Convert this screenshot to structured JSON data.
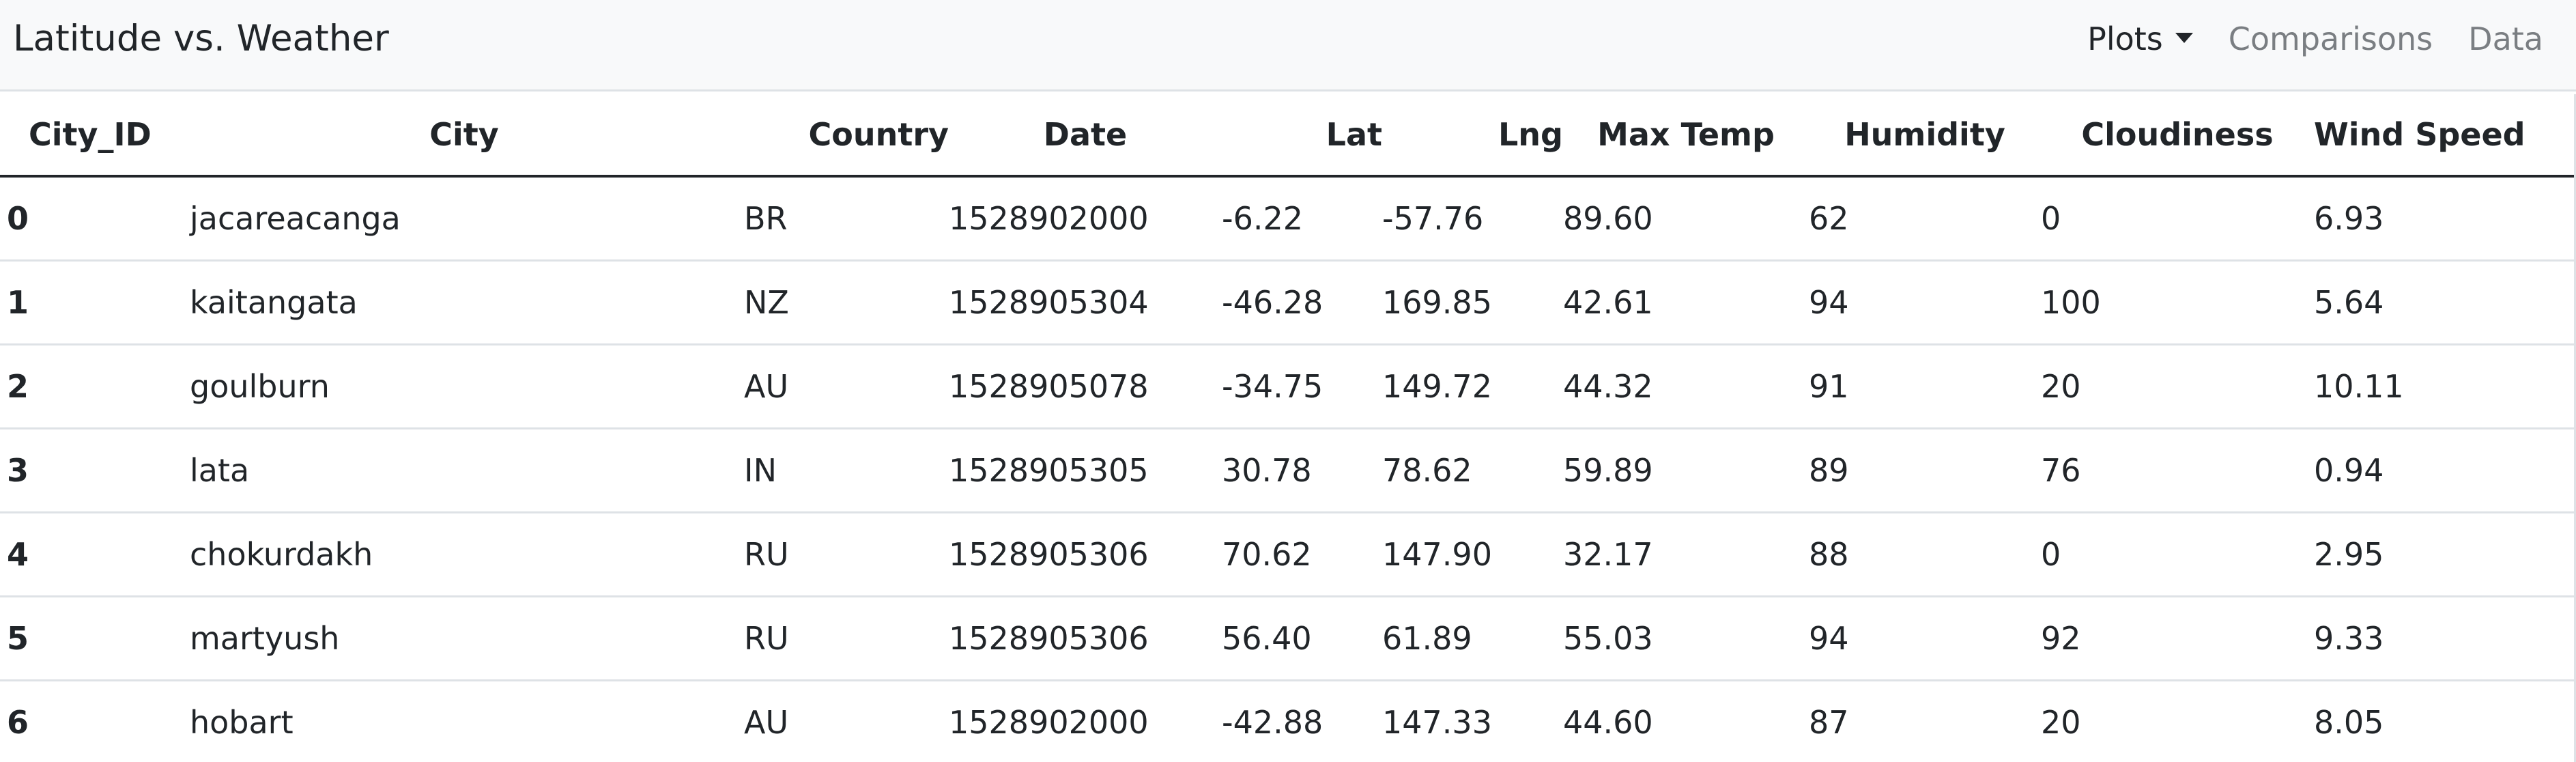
{
  "navbar": {
    "brand": "Latitude vs. Weather",
    "links": [
      {
        "label": "Plots",
        "active": true,
        "dropdown": true
      },
      {
        "label": "Comparisons",
        "active": false
      },
      {
        "label": "Data",
        "active": false
      }
    ]
  },
  "table": {
    "headers": [
      "City_ID",
      "City",
      "Country",
      "Date",
      "Lat",
      "Lng",
      "Max Temp",
      "Humidity",
      "Cloudiness",
      "Wind Speed"
    ],
    "rows": [
      [
        "0",
        "jacareacanga",
        "BR",
        "1528902000",
        "-6.22",
        "-57.76",
        "89.60",
        "62",
        "0",
        "6.93"
      ],
      [
        "1",
        "kaitangata",
        "NZ",
        "1528905304",
        "-46.28",
        "169.85",
        "42.61",
        "94",
        "100",
        "5.64"
      ],
      [
        "2",
        "goulburn",
        "AU",
        "1528905078",
        "-34.75",
        "149.72",
        "44.32",
        "91",
        "20",
        "10.11"
      ],
      [
        "3",
        "lata",
        "IN",
        "1528905305",
        "30.78",
        "78.62",
        "59.89",
        "89",
        "76",
        "0.94"
      ],
      [
        "4",
        "chokurdakh",
        "RU",
        "1528905306",
        "70.62",
        "147.90",
        "32.17",
        "88",
        "0",
        "2.95"
      ],
      [
        "5",
        "martyush",
        "RU",
        "1528905306",
        "56.40",
        "61.89",
        "55.03",
        "94",
        "92",
        "9.33"
      ],
      [
        "6",
        "hobart",
        "AU",
        "1528902000",
        "-42.88",
        "147.33",
        "44.60",
        "87",
        "20",
        "8.05"
      ]
    ]
  }
}
